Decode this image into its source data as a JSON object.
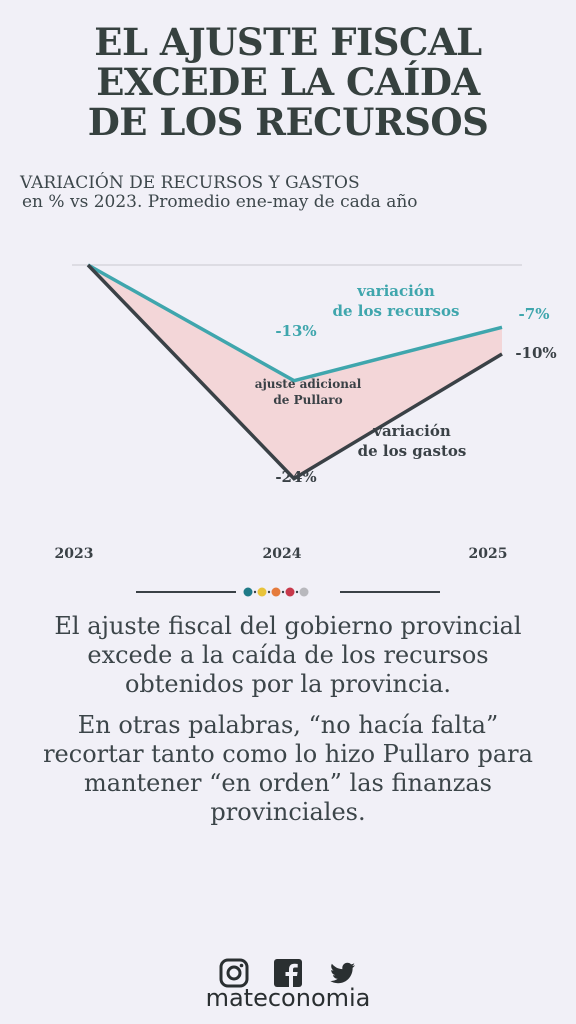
{
  "title": {
    "line1": "EL AJUSTE FISCAL",
    "line2": "EXCEDE LA CAÍDA",
    "line3": "DE LOS RECURSOS"
  },
  "subtitle": {
    "line1": "VARIACIÓN DE RECURSOS Y GASTOS",
    "line2": "en % vs 2023. Promedio ene-may de cada año"
  },
  "chart_data": {
    "type": "line",
    "x": [
      "2023",
      "2024",
      "2025"
    ],
    "ylim": [
      -26,
      0
    ],
    "series": [
      {
        "name": "variación de los recursos",
        "label_line1": "variación",
        "label_line2": "de los recursos",
        "values": [
          0,
          -13,
          -7
        ],
        "labels": [
          "",
          "-13%",
          "-7%"
        ],
        "color": "#3fa6ad"
      },
      {
        "name": "variación de los gastos",
        "label_line1": "variación",
        "label_line2": "de los gastos",
        "values": [
          0,
          -24,
          -10
        ],
        "labels": [
          "",
          "-24%",
          "-10%"
        ],
        "color": "#3a4146"
      }
    ],
    "area_annotation": {
      "line1": "ajuste adicional",
      "line2": "de Pullaro",
      "fill": "#f3d6d8"
    }
  },
  "body": {
    "p1": "El ajuste fiscal del gobierno provincial excede a la caída de los recursos obtenidos por la provincia.",
    "p2": "En otras palabras, “no hacía falta” recortar tanto como lo hizo Pullaro para mantener “en orden” las finanzas provinciales."
  },
  "divider_dots": [
    "#1f7a87",
    "#e8c33a",
    "#e57b3c",
    "#c7384a",
    "#b8b8bd"
  ],
  "icons": [
    "instagram-icon",
    "facebook-icon",
    "twitter-icon"
  ],
  "brand": "mateconomia"
}
